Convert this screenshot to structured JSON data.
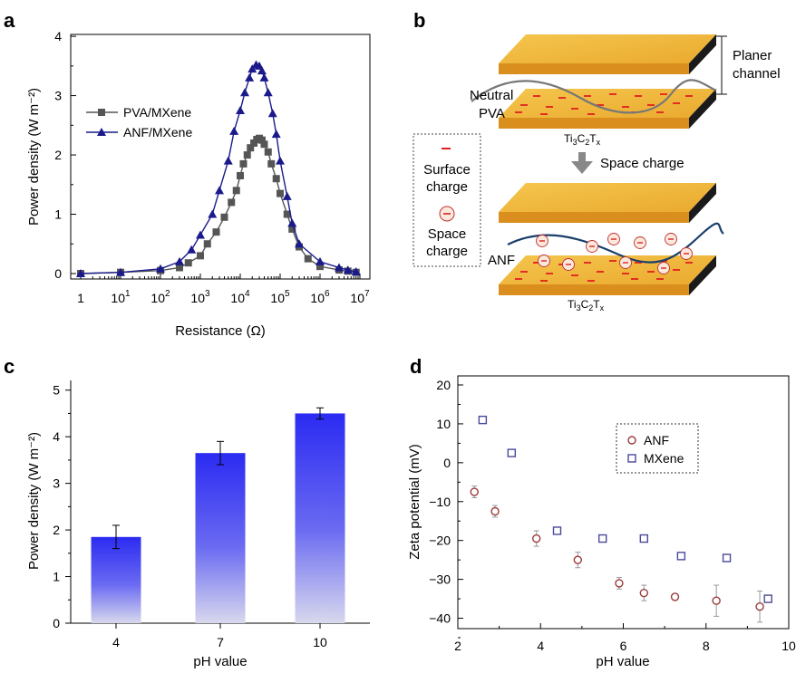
{
  "panels": {
    "a": "a",
    "b": "b",
    "c": "c",
    "d": "d"
  },
  "chart_data": [
    {
      "panel": "a",
      "type": "line",
      "xlabel": "Resistance (Ω)",
      "ylabel": "Power density (W m⁻²)",
      "xscale": "log",
      "xlim": [
        1,
        10000000
      ],
      "ylim": [
        0,
        4
      ],
      "x_ticks": [
        "1",
        "10",
        "10",
        "10",
        "10",
        "10",
        "10",
        "10"
      ],
      "x_tick_exponents": [
        "",
        "1",
        "2",
        "3",
        "4",
        "5",
        "6",
        "7"
      ],
      "y_ticks": [
        "0",
        "1",
        "2",
        "3",
        "4"
      ],
      "legend_position": "left",
      "series": [
        {
          "name": "PVA/MXene",
          "color": "#555555",
          "marker": "square",
          "x": [
            1,
            10,
            100,
            300,
            500,
            1000,
            1500,
            2500,
            4000,
            6000,
            8000,
            10000,
            12000,
            15000,
            18000,
            22000,
            26000,
            30000,
            35000,
            40000,
            50000,
            60000,
            80000,
            100000,
            150000,
            200000,
            300000,
            500000,
            1000000,
            3000000,
            5000000,
            8000000
          ],
          "y": [
            0,
            0.02,
            0.05,
            0.1,
            0.18,
            0.3,
            0.5,
            0.7,
            0.95,
            1.2,
            1.4,
            1.65,
            1.85,
            2.0,
            2.12,
            2.2,
            2.26,
            2.28,
            2.25,
            2.18,
            2.05,
            1.85,
            1.6,
            1.35,
            1.0,
            0.75,
            0.45,
            0.25,
            0.12,
            0.06,
            0.04,
            0.02
          ]
        },
        {
          "name": "ANF/MXene",
          "color": "#1a1a8c",
          "marker": "triangle",
          "x": [
            1,
            10,
            100,
            300,
            600,
            1000,
            2000,
            3000,
            5000,
            7000,
            10000,
            13000,
            17000,
            20000,
            25000,
            30000,
            35000,
            40000,
            50000,
            65000,
            80000,
            100000,
            150000,
            200000,
            300000,
            1000000,
            3000000,
            5000000,
            8000000
          ],
          "y": [
            0,
            0.02,
            0.08,
            0.2,
            0.4,
            0.65,
            1.0,
            1.4,
            1.9,
            2.4,
            2.75,
            3.05,
            3.3,
            3.45,
            3.52,
            3.5,
            3.42,
            3.3,
            3.05,
            2.7,
            2.35,
            1.9,
            1.3,
            0.85,
            0.5,
            0.2,
            0.1,
            0.06,
            0.03
          ]
        }
      ]
    },
    {
      "panel": "c",
      "type": "bar",
      "xlabel": "pH value",
      "ylabel": "Power density (W m⁻²)",
      "categories": [
        "4",
        "7",
        "10"
      ],
      "values": [
        1.85,
        3.65,
        4.5
      ],
      "errors": [
        0.25,
        0.25,
        0.12
      ],
      "ylim": [
        0,
        5
      ],
      "y_ticks": [
        "0",
        "1",
        "2",
        "3",
        "4",
        "5"
      ],
      "color": "#2f2ff0"
    },
    {
      "panel": "d",
      "type": "scatter",
      "xlabel": "pH value",
      "ylabel": "Zeta potential (mV)",
      "xlim": [
        2,
        10
      ],
      "ylim": [
        -45,
        20
      ],
      "x_ticks": [
        "2",
        "4",
        "6",
        "8",
        "10"
      ],
      "y_ticks": [
        "20",
        "10",
        "0",
        "−10",
        "−20",
        "−30",
        "−40"
      ],
      "legend_position": "top-right",
      "series": [
        {
          "name": "ANF",
          "color": "#9a3b3b",
          "marker": "circle",
          "x": [
            2.4,
            2.9,
            3.9,
            4.9,
            5.9,
            6.5,
            7.25,
            8.25,
            9.3
          ],
          "y": [
            -7.5,
            -12.5,
            -19.5,
            -25,
            -31,
            -33.5,
            -34.5,
            -35.5,
            -37
          ],
          "errors": [
            1.5,
            1.5,
            2,
            2,
            1.5,
            2,
            0.8,
            4,
            4
          ]
        },
        {
          "name": "MXene",
          "color": "#4a4a99",
          "marker": "square",
          "x": [
            2.6,
            3.3,
            4.4,
            5.5,
            6.5,
            7.4,
            8.5,
            9.5
          ],
          "y": [
            11,
            2.5,
            -17.5,
            -19.5,
            -19.5,
            -24,
            -24.5,
            -35
          ],
          "errors": [
            0,
            0,
            0,
            0,
            0,
            0,
            0,
            0
          ]
        }
      ]
    }
  ],
  "schematic": {
    "labels": {
      "planer_channel_1": "Planer",
      "planer_channel_2": "channel",
      "neutral_1": "Neutral",
      "neutral_2": "PVA",
      "ti_top": "Ti",
      "ti_sub1": "3",
      "ti_c": "C",
      "ti_sub2": "2",
      "ti_t": "T",
      "ti_sub3": "x",
      "space_charge_arrow": "Space charge",
      "legend_surface_1": "Surface",
      "legend_surface_2": "charge",
      "legend_space_1": "Space",
      "legend_space_2": "charge",
      "anf": "ANF"
    },
    "colors": {
      "plate_top": "#f3bd3f",
      "plate_front": "#e09a20",
      "plate_side": "#222222",
      "charge": "#e02020"
    }
  }
}
